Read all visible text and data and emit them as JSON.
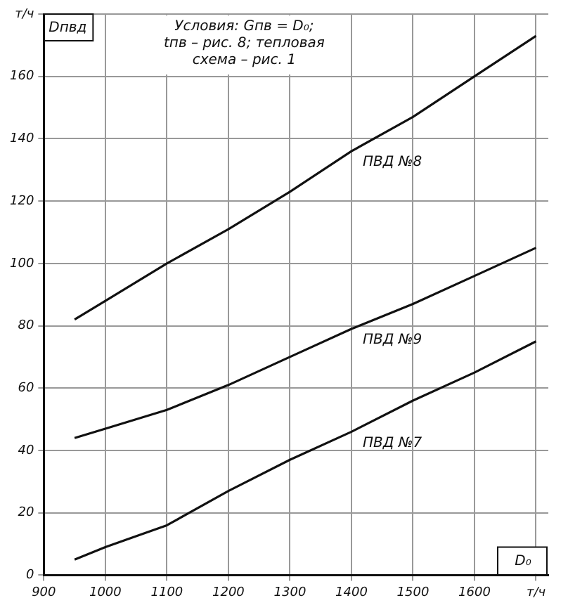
{
  "chart_data": {
    "type": "line",
    "ylabel": "Dпвд",
    "xlabel": "D₀",
    "annotations": [
      "Условия: Gпв = D₀; tпв – рис. 8; тепловая схема – рис. 1"
    ],
    "x": [
      950,
      1000,
      1100,
      1200,
      1300,
      1400,
      1500,
      1600,
      1700
    ],
    "series": [
      {
        "name": "ПВД №8",
        "color": "#111111",
        "values": [
          82,
          88,
          100,
          111,
          123,
          136,
          147,
          160,
          173
        ]
      },
      {
        "name": "ПВД №9",
        "color": "#111111",
        "values": [
          44,
          47,
          53,
          61,
          70,
          79,
          87,
          96,
          105
        ]
      },
      {
        "name": "ПВД №7",
        "color": "#111111",
        "values": [
          5,
          9,
          16,
          27,
          37,
          46,
          56,
          65,
          75
        ]
      }
    ],
    "xlim": [
      900,
      1720
    ],
    "xticks": [
      900,
      1000,
      1100,
      1200,
      1300,
      1400,
      1500,
      1600,
      {
        "value": 1700,
        "label": "т/ч"
      }
    ],
    "ylim": [
      0,
      180
    ],
    "yticks": [
      0,
      20,
      40,
      60,
      80,
      100,
      120,
      140,
      160,
      {
        "value": 180,
        "label": "т/ч"
      }
    ],
    "grid": true,
    "legend": false,
    "marker": "none",
    "line_style": "solid"
  }
}
